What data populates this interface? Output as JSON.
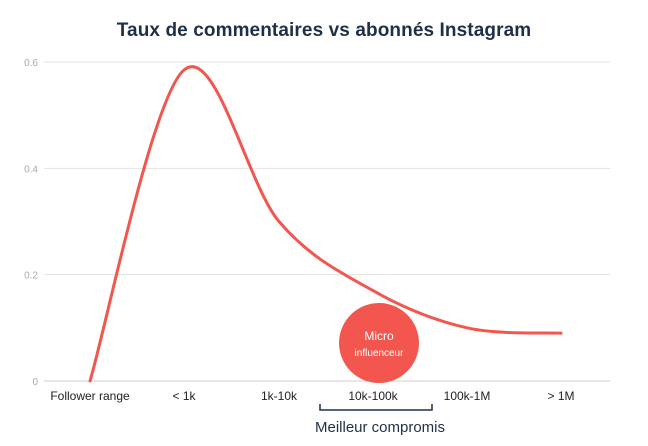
{
  "chart_data": {
    "type": "line",
    "title": "Taux de commentaires vs abonnés Instagram",
    "categories": [
      "Follower range",
      "< 1k",
      "1k-10k",
      "10k-100k",
      "100k-1M",
      "> 1M"
    ],
    "series": [
      {
        "values": [
          0,
          0.585,
          0.3,
          0.17,
          0.1,
          0.09
        ]
      }
    ],
    "yticks": [
      0,
      0.2,
      0.4,
      0.6
    ],
    "ytick_labels": [
      "0",
      "0.2",
      "0.4",
      "0.6"
    ],
    "ylim": [
      0,
      0.6
    ],
    "grid": true,
    "line_color": "#f2564f",
    "annotation_bubble": {
      "line1": "Micro",
      "line2": "influenceur",
      "category": "10k-100k",
      "color": "#f2564f"
    },
    "bracket_note": {
      "text": "Meilleur compromis",
      "from_category": "1k-10k",
      "to_category": "100k-1M"
    }
  }
}
